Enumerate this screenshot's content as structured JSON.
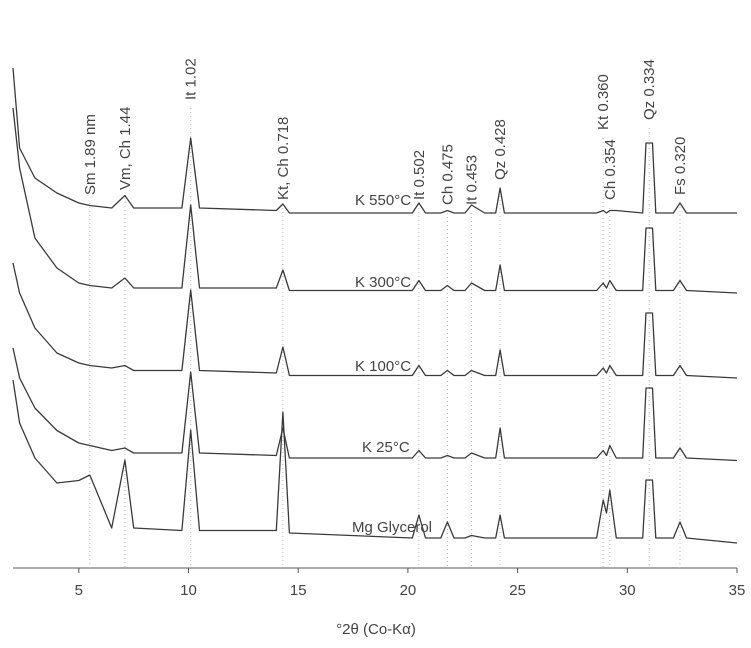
{
  "chart_data": {
    "type": "line",
    "xlabel": "°2θ (Co-Kα)",
    "xlim": [
      2,
      35
    ],
    "xticks": [
      5,
      10,
      15,
      20,
      25,
      30,
      35
    ],
    "ylim": [
      0,
      100
    ],
    "x": [
      2,
      2.3,
      3,
      4,
      5,
      5.5,
      6.5,
      7.1,
      7.5,
      9.7,
      10.1,
      10.5,
      14,
      14.3,
      14.6,
      20.2,
      20.5,
      20.8,
      21.5,
      21.8,
      22.1,
      22.6,
      22.9,
      23.5,
      24.0,
      24.2,
      24.4,
      28.6,
      28.9,
      29.05,
      29.2,
      29.5,
      30.7,
      30.85,
      31.15,
      31.3,
      32.1,
      32.4,
      32.7,
      35
    ],
    "series": [
      {
        "name": "K 550°C",
        "color": "#3a3a3a",
        "values": [
          100,
          84,
          78,
          75,
          73,
          72.5,
          72,
          74.5,
          72,
          72,
          86,
          72,
          71.5,
          72.8,
          71,
          71,
          73,
          71,
          71,
          71.5,
          71,
          71,
          72.6,
          71,
          71,
          76,
          71,
          71,
          71.5,
          71,
          71.5,
          71.5,
          71,
          85,
          85,
          71,
          71,
          73,
          71,
          71
        ]
      },
      {
        "name": "K 300°C",
        "color": "#3a3a3a",
        "values": [
          92,
          80,
          66,
          60,
          57,
          56.5,
          56,
          58,
          56,
          56,
          72.6,
          56,
          56,
          59.6,
          55.5,
          55.5,
          57.5,
          55.5,
          55.5,
          56.5,
          55.5,
          55.5,
          57,
          55.5,
          55.5,
          60.6,
          55.5,
          55.5,
          57,
          56,
          57.5,
          55.5,
          55.5,
          68,
          68,
          55.5,
          55.5,
          57.5,
          55.5,
          55
        ]
      },
      {
        "name": "K 100°C",
        "color": "#3a3a3a",
        "values": [
          61,
          55,
          48,
          43,
          41,
          40.5,
          40,
          40.5,
          39.5,
          39.5,
          55.6,
          39.5,
          39,
          44.2,
          38.5,
          38.5,
          40.5,
          38.5,
          38.5,
          39.5,
          38.5,
          38.5,
          39.5,
          38.5,
          38.5,
          43.6,
          38.5,
          38.5,
          40,
          39,
          40.5,
          38.5,
          38.5,
          51,
          51,
          38.5,
          38.5,
          40.5,
          38.5,
          38
        ]
      },
      {
        "name": "K 25°C",
        "color": "#3a3a3a",
        "values": [
          44,
          38,
          32,
          27.5,
          25,
          24.5,
          23.5,
          24,
          23,
          23,
          39.2,
          23,
          22.5,
          28,
          22,
          22,
          23.5,
          22,
          22,
          22.5,
          22,
          22,
          23,
          22,
          22,
          28,
          22,
          22,
          23.5,
          22.5,
          24.5,
          22,
          22,
          36,
          36,
          22,
          22,
          24,
          22,
          21.5
        ]
      },
      {
        "name": "Mg Glycerol",
        "color": "#3a3a3a",
        "values": [
          37.6,
          29,
          22,
          17,
          17.5,
          18.6,
          8,
          21.6,
          8,
          7.5,
          27.6,
          7.5,
          7.5,
          31.2,
          7,
          6,
          10.6,
          6,
          6,
          9.2,
          6,
          6,
          6.5,
          6,
          6,
          10.6,
          6,
          6,
          13.6,
          11,
          15.6,
          6,
          6,
          17.6,
          17.6,
          6,
          6,
          9.2,
          6,
          5
        ]
      }
    ],
    "annotations": [
      {
        "text": "Sm 1.89 nm",
        "x": 5.5
      },
      {
        "text": "Vm, Ch 1.44",
        "x": 7.1
      },
      {
        "text": "It 1.02",
        "x": 10.1
      },
      {
        "text": "Kt, Ch 0.718",
        "x": 14.3
      },
      {
        "text": "It 0.502",
        "x": 20.5
      },
      {
        "text": "Ch 0.475",
        "x": 21.8
      },
      {
        "text": "It 0.453",
        "x": 22.9
      },
      {
        "text": "Qz 0.428",
        "x": 24.2
      },
      {
        "text": "Kt 0.360",
        "x": 28.9
      },
      {
        "text": "Ch 0.354",
        "x": 29.2
      },
      {
        "text": "Qz 0.334",
        "x": 31.0
      },
      {
        "text": "Fs 0.320",
        "x": 32.4
      }
    ]
  }
}
